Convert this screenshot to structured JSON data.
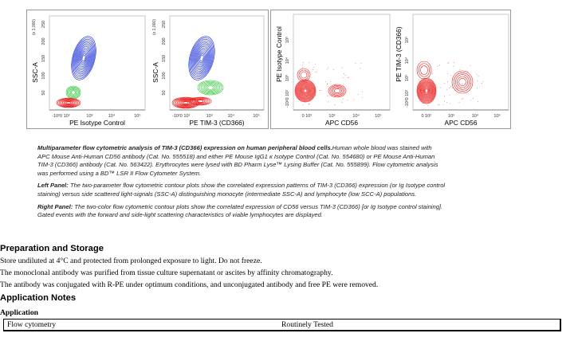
{
  "figure": {
    "plots": [
      {
        "ylabel": "SSC-A",
        "xlabel": "PE  Isotype Control",
        "yscale": "(x 1,000)",
        "yticks": [
          "50",
          "100",
          "150",
          "200",
          "250"
        ],
        "xticks": [
          "-10²0 10²",
          "10³",
          "10⁴",
          "10⁵"
        ]
      },
      {
        "ylabel": "SSC-A",
        "xlabel": "PE  TIM-3 (CD366)",
        "yscale": "(x 1,000)",
        "yticks": [
          "50",
          "100",
          "150",
          "200",
          "250"
        ],
        "xticks": [
          "-10²0 10²",
          "10³",
          "10⁴",
          "10⁵"
        ]
      },
      {
        "ylabel": "PE  Isotype Control",
        "xlabel": "APC  CD56",
        "yticks": [
          "-10²0 10²",
          "10³",
          "10⁴",
          "10⁵"
        ],
        "xticks": [
          "0 10²",
          "10³",
          "10⁴",
          "10⁵"
        ]
      },
      {
        "ylabel": "PE  TIM-3 (CD366)",
        "xlabel": "APC  CD56",
        "yticks": [
          "-10²0 10²",
          "10³",
          "10⁴",
          "10⁵"
        ],
        "xticks": [
          "0 10²",
          "10³",
          "10⁴",
          "10⁵"
        ]
      }
    ],
    "colors": {
      "monocytes": "#1a2fd6",
      "intermediate": "#22c22a",
      "lymphocytes": "#e81c1c"
    }
  },
  "caption": {
    "title": "Multiparameter flow cytometric analysis of TIM-3 (CD366) expression on human peripheral blood cells.",
    "text": "Human whole blood was stained with APC Mouse Anti-Human CD56  antibody (Cat. No. 555518) and either PE Mouse IgG1 κ Isotype Control (Cat. No. 554680) or PE Mouse Anti-Human TIM-3 (CD366) antibody (Cat. No. 563422). Erythrocytes were lysed with BD Pharm Lyse™ Lysing Buffer (Cat. No. 555899). Flow cytometric analysis was performed using a BD™ LSR II Flow Cytometer System.",
    "left_label": "Left Panel:",
    "left_text": " The two-parameter flow cytometric contour plots show the correlated expression patterns of TIM-3 (CD366) expression (or Ig Isotype control staining) versus side scattered light-signals (SSC-A) distinguishing monocyte (intermediate SSC-A) and lymphocyte (low SCC-A) populations.",
    "right_label": "Right Panel:",
    "right_text": " The two-color flow cytometric contour plots show the correlated expression of CD56 versus TIM-3 (CD366) [or Ig Isotype control staining]. Gated events with the forward and side-light scattering characteristics of viable lymphocytes are displayed."
  },
  "preparation": {
    "heading": "Preparation and Storage",
    "lines": [
      "Store undiluted at 4°C and protected from prolonged exposure to light.  Do not freeze.",
      "The monoclonal antibody was purified from tissue culture supernatant or ascites by affinity chromatography.",
      "The antibody was conjugated with R-PE under optimum conditions, and unconjugated antibody and free PE were removed."
    ]
  },
  "application_notes": {
    "heading": "Application Notes",
    "subheading": "Application",
    "rows": [
      {
        "application": "Flow cytometry",
        "status": "Routinely Tested"
      }
    ]
  }
}
